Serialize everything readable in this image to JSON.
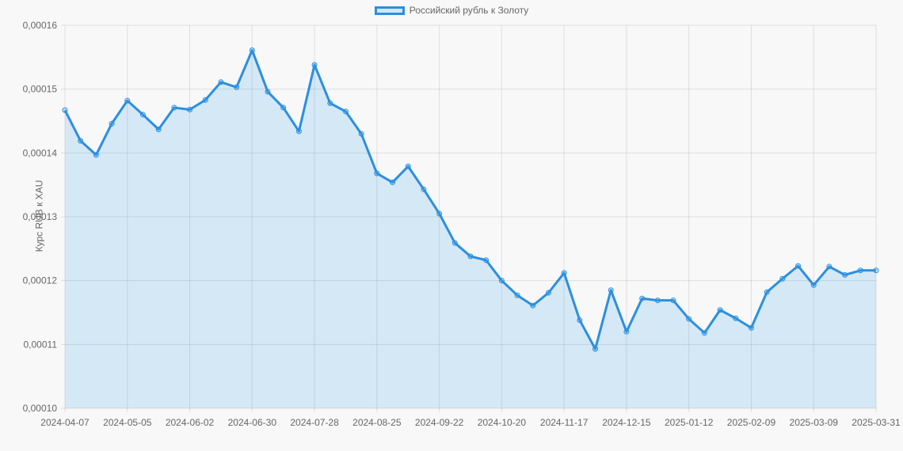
{
  "chart_data": {
    "type": "line",
    "title": "",
    "legend": [
      {
        "label": "Российский рубль к Золоту",
        "color": "#2b8fe0"
      }
    ],
    "legend_position": "top",
    "xlabel": "",
    "ylabel": "Курс RUB к XAU",
    "ylim": [
      0.0001,
      0.00016
    ],
    "yticks": [
      "0,00010",
      "0,00011",
      "0,00012",
      "0,00013",
      "0,00014",
      "0,00015",
      "0,00016"
    ],
    "xtick_labels": [
      "2024-04-07",
      "2024-05-05",
      "2024-06-02",
      "2024-06-30",
      "2024-07-28",
      "2024-08-25",
      "2024-09-22",
      "2024-10-20",
      "2024-11-17",
      "2024-12-15",
      "2025-01-12",
      "2025-02-09",
      "2025-03-09",
      "2025-03-31"
    ],
    "grid": true,
    "fill": true,
    "series": [
      {
        "name": "Российский рубль к Золоту",
        "color": "#2b8fe0",
        "fill_color": "rgba(54,162,235,0.18)",
        "values": [
          0.0001467,
          0.0001419,
          0.0001397,
          0.0001446,
          0.0001482,
          0.000146,
          0.0001437,
          0.0001471,
          0.0001468,
          0.0001483,
          0.0001511,
          0.0001503,
          0.0001561,
          0.0001496,
          0.0001471,
          0.0001434,
          0.0001538,
          0.0001478,
          0.0001465,
          0.000143,
          0.0001368,
          0.0001354,
          0.0001379,
          0.0001343,
          0.0001305,
          0.0001259,
          0.0001238,
          0.0001232,
          0.00012,
          0.0001177,
          0.0001161,
          0.0001181,
          0.0001212,
          0.0001138,
          0.0001093,
          0.0001185,
          0.000112,
          0.0001172,
          0.0001169,
          0.0001169,
          0.000114,
          0.0001118,
          0.0001154,
          0.0001141,
          0.0001126,
          0.0001182,
          0.0001203,
          0.0001223,
          0.0001193,
          0.0001222,
          0.0001209,
          0.0001216,
          0.0001216
        ]
      }
    ]
  }
}
